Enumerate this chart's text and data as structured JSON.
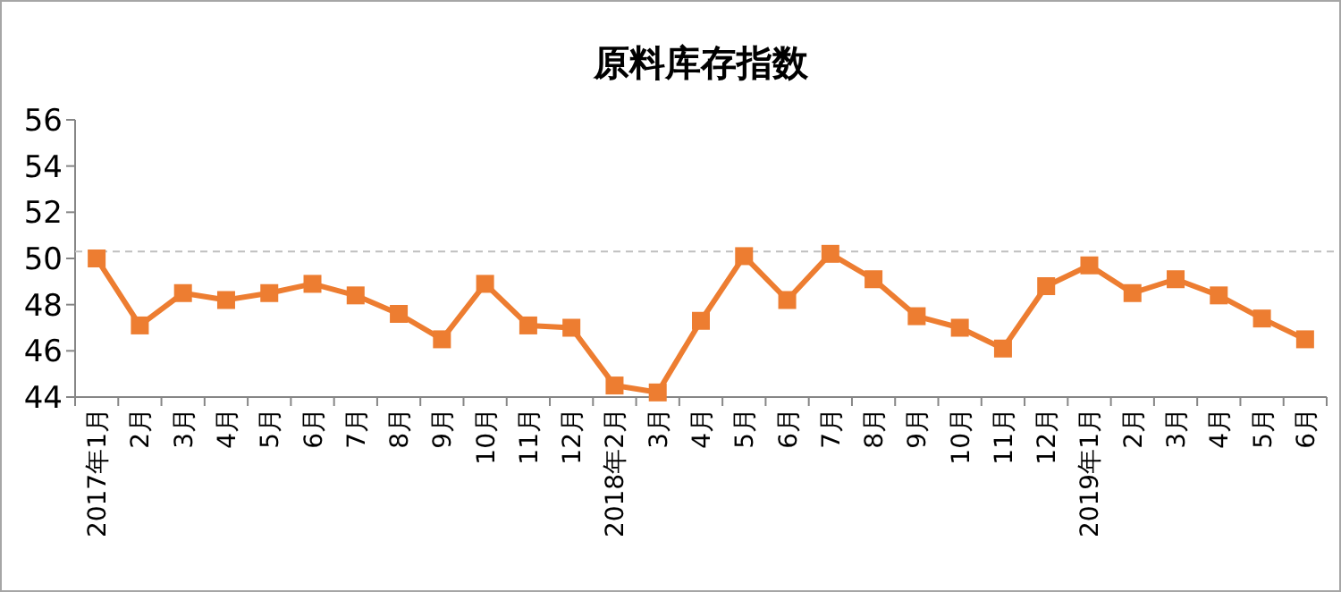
{
  "chart_data": {
    "type": "line",
    "title": "原料库存指数",
    "categories": [
      "2017年1月",
      "2月",
      "3月",
      "4月",
      "5月",
      "6月",
      "7月",
      "8月",
      "9月",
      "10月",
      "11月",
      "12月",
      "2018年2月",
      "3月",
      "4月",
      "5月",
      "6月",
      "7月",
      "8月",
      "9月",
      "10月",
      "11月",
      "12月",
      "2019年1月",
      "2月",
      "3月",
      "4月",
      "5月",
      "6月"
    ],
    "series": [
      {
        "color": "#ed7d31",
        "values": [
          50.0,
          47.1,
          48.5,
          48.2,
          48.5,
          48.9,
          48.4,
          47.6,
          46.5,
          48.9,
          47.1,
          47.0,
          44.5,
          44.2,
          47.3,
          50.1,
          48.2,
          50.2,
          49.1,
          47.5,
          47.0,
          46.1,
          48.8,
          49.7,
          48.5,
          49.1,
          48.4,
          47.4,
          46.5
        ]
      }
    ],
    "ylim": [
      44,
      56
    ],
    "yticks": [
      44,
      46,
      48,
      50,
      52,
      54,
      56
    ],
    "marker": "square",
    "line_style": "solid",
    "ref_lines": [
      {
        "axis": "y",
        "value": 50.3,
        "color": "#bfbfbf",
        "line_style": "dashed"
      }
    ]
  }
}
